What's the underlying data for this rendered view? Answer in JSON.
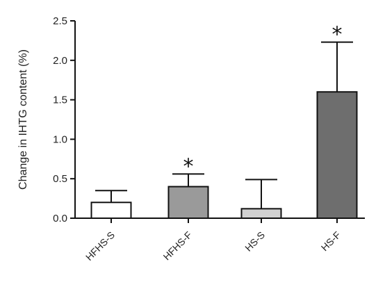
{
  "chart_data": {
    "type": "bar",
    "ylabel": "Change in IHTG content  (%)",
    "ylim": [
      0,
      2.5
    ],
    "yticks": [
      "0.0",
      "0.5",
      "1.0",
      "1.5",
      "2.0",
      "2.5"
    ],
    "categories": [
      "HFHS-S",
      "HFHS-F",
      "HS-S",
      "HS-F"
    ],
    "values": [
      0.2,
      0.4,
      0.12,
      1.6
    ],
    "error": [
      0.15,
      0.16,
      0.37,
      0.63
    ],
    "annotations": [
      "",
      "*",
      "",
      "*"
    ],
    "colors": [
      "#ffffff",
      "#9a9a9a",
      "#d2d2d2",
      "#6e6e6e"
    ]
  }
}
